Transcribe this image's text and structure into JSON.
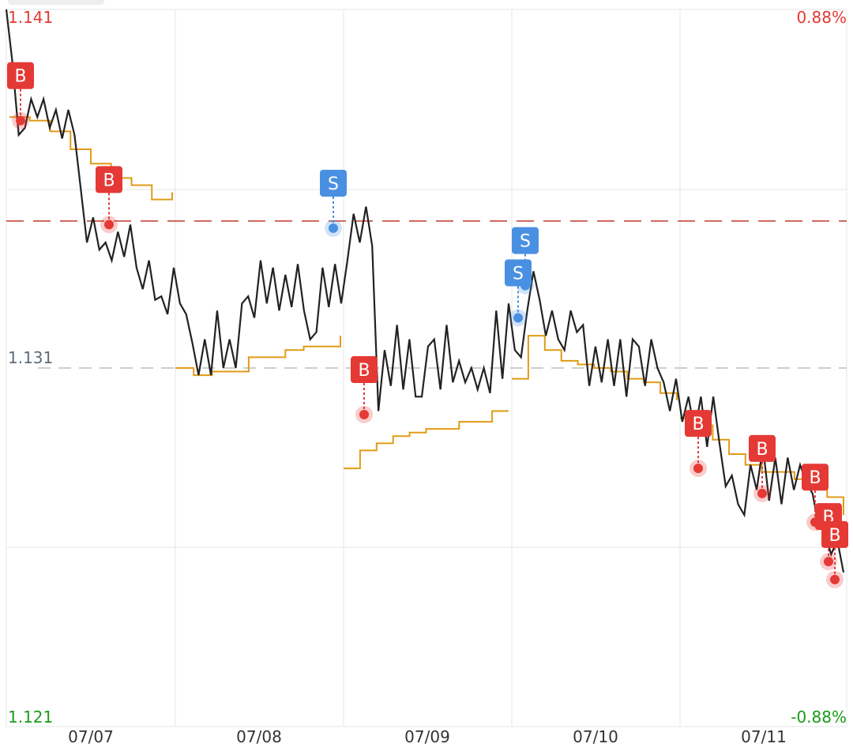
{
  "chart_data": {
    "type": "line",
    "price_high": "1.141",
    "price_mid": "1.131",
    "price_low": "1.121",
    "pct_high": "0.88%",
    "pct_low": "-0.88%",
    "ylim": [
      1.121,
      1.141
    ],
    "reference_price": 1.131,
    "alert_price": 1.1351,
    "x_labels": [
      "07/07",
      "07/08",
      "07/09",
      "07/10",
      "07/11"
    ],
    "series": [
      {
        "color": "#222222",
        "values": [
          1.141,
          1.1395,
          1.1375,
          1.1377,
          1.1385,
          1.138,
          1.1385,
          1.1377,
          1.1382,
          1.1374,
          1.1382,
          1.1375,
          1.136,
          1.1345,
          1.1352,
          1.1343,
          1.1345,
          1.134,
          1.1348,
          1.1341,
          1.135,
          1.1338,
          1.1332,
          1.134,
          1.1329,
          1.133,
          1.1325,
          1.1338,
          1.1328,
          1.1325,
          1.1317,
          1.1308,
          1.1318,
          1.1308,
          1.1326,
          1.131,
          1.1318,
          1.131,
          1.1328,
          1.133,
          1.1324,
          1.134,
          1.1328,
          1.1338,
          1.1326,
          1.1336,
          1.1327,
          1.1339,
          1.1326,
          1.1318,
          1.132,
          1.1338,
          1.1327,
          1.1339,
          1.1328,
          1.134,
          1.1353,
          1.1345,
          1.1355,
          1.1344,
          1.1298,
          1.1315,
          1.1305,
          1.1322,
          1.1304,
          1.1318,
          1.1302,
          1.1302,
          1.1316,
          1.1318,
          1.1304,
          1.1322,
          1.1306,
          1.1312,
          1.1306,
          1.131,
          1.1304,
          1.131,
          1.1303,
          1.1326,
          1.1307,
          1.1328,
          1.1315,
          1.1313,
          1.1326,
          1.1337,
          1.1329,
          1.1319,
          1.1326,
          1.1318,
          1.1315,
          1.1326,
          1.132,
          1.1322,
          1.1305,
          1.1316,
          1.1306,
          1.1318,
          1.1305,
          1.1318,
          1.1302,
          1.1318,
          1.1316,
          1.1305,
          1.1318,
          1.131,
          1.1306,
          1.1298,
          1.1307,
          1.1295,
          1.1302,
          1.1292,
          1.1302,
          1.1288,
          1.1302,
          1.1289,
          1.1277,
          1.128,
          1.1272,
          1.1269,
          1.1283,
          1.1276,
          1.1288,
          1.1273,
          1.1285,
          1.1272,
          1.1285,
          1.1276,
          1.1283,
          1.1278,
          1.1275,
          1.1266,
          1.1264,
          1.1258,
          1.1262,
          1.1253
        ]
      },
      {
        "color": "#e09b17",
        "values": [
          1.138,
          1.1379,
          1.1376,
          1.1371,
          1.1367,
          1.1363,
          1.1361,
          1.1357,
          1.1359,
          1.131,
          1.1308,
          1.1309,
          1.1309,
          1.1313,
          1.1313,
          1.1315,
          1.1316,
          1.1316,
          1.1319,
          1.1282,
          1.1287,
          1.1289,
          1.1291,
          1.1292,
          1.1293,
          1.1293,
          1.1295,
          1.1295,
          1.1298,
          1.1298,
          1.1307,
          1.1319,
          1.1315,
          1.1312,
          1.1311,
          1.131,
          1.1309,
          1.1307,
          1.1306,
          1.1303,
          1.1301,
          1.1296,
          1.1294,
          1.129,
          1.1286,
          1.1283,
          1.1281,
          1.1281,
          1.1279,
          1.1279,
          1.1274,
          1.1269
        ]
      }
    ],
    "markers": [
      {
        "label": "B",
        "color": "#e53935",
        "price": 1.1379
      },
      {
        "label": "B",
        "color": "#e53935",
        "price": 1.135
      },
      {
        "label": "S",
        "color": "#4a90e2",
        "price": 1.1349
      },
      {
        "label": "B",
        "color": "#e53935",
        "price": 1.1297
      },
      {
        "label": "S",
        "color": "#4a90e2",
        "price": 1.1333
      },
      {
        "label": "S",
        "color": "#4a90e2",
        "price": 1.1324
      },
      {
        "label": "B",
        "color": "#e53935",
        "price": 1.1282
      },
      {
        "label": "B",
        "color": "#e53935",
        "price": 1.1275
      },
      {
        "label": "B",
        "color": "#e53935",
        "price": 1.1267
      },
      {
        "label": "B",
        "color": "#e53935",
        "price": 1.1256
      },
      {
        "label": "B",
        "color": "#e53935",
        "price": 1.1251
      }
    ],
    "colors": {
      "up": "#e53935",
      "down": "#1a9a1a",
      "neutral": "#5f6b77",
      "grid": "#e6e6e6",
      "reference_line": "#bdbdbd",
      "alert_line": "#c0392b"
    }
  }
}
